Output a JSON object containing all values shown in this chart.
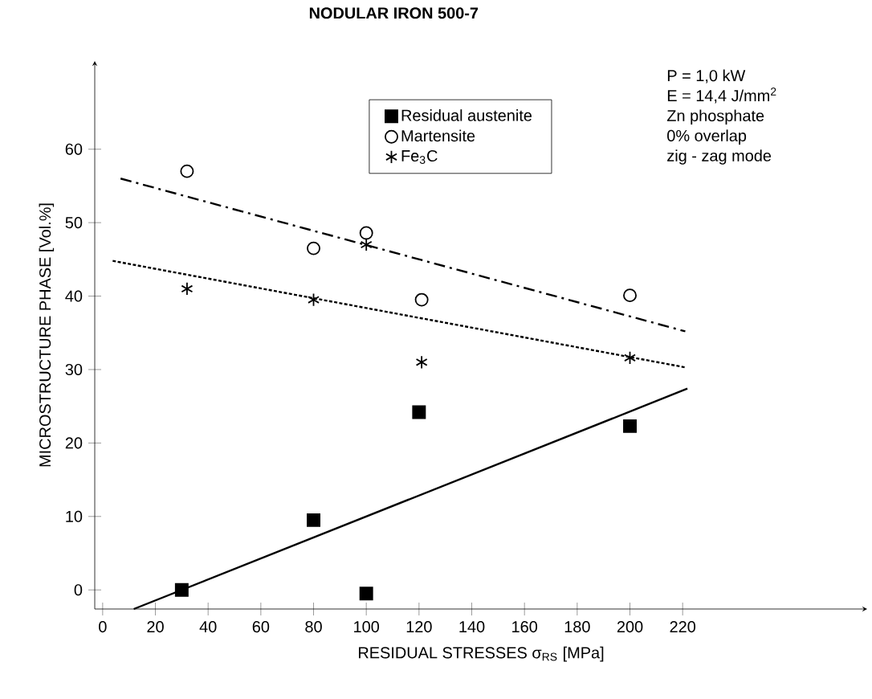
{
  "chart_data": {
    "type": "scatter",
    "title": "NODULAR IRON 500-7",
    "xlabel": "RESIDUAL STRESSES σ$_{RS}$ [MPa]",
    "ylabel": "MICROSTRUCTURE PHASE [Vol.%]",
    "annotations": [
      "P = 1,0 kW",
      "E = 14,4 J/mm$^{2}$",
      "Zn phosphate",
      "0% overlap",
      "zig - zag mode"
    ],
    "xlim": [
      -3,
      290
    ],
    "ylim": [
      -2.6,
      72
    ],
    "xticks": [
      0,
      20,
      40,
      60,
      80,
      100,
      120,
      140,
      160,
      180,
      200,
      220
    ],
    "yticks": [
      0,
      10,
      20,
      30,
      40,
      50,
      60
    ],
    "grid": false,
    "legend": "top",
    "series": [
      {
        "name": "Residual austenite",
        "color": "#000000",
        "marker": "square",
        "x": [
          30,
          80,
          100,
          120,
          200
        ],
        "values": [
          0,
          9.5,
          -0.5,
          24.2,
          22.3
        ]
      },
      {
        "name": "Martensite",
        "color": "#000000",
        "marker": "circle",
        "x": [
          32,
          80,
          100,
          121,
          200
        ],
        "values": [
          57,
          46.5,
          48.6,
          39.5,
          40.1
        ]
      },
      {
        "name": "Fe$_{3}$C",
        "color": "#000000",
        "marker": "cross",
        "x": [
          32,
          80,
          100,
          121,
          200
        ],
        "values": [
          41,
          39.5,
          47,
          31,
          31.6
        ]
      },
      {
        "type": "line",
        "color": "#000000",
        "marker": "none",
        "line_style": "solid",
        "x": [
          11.8,
          221.8
        ],
        "values": [
          -2.6,
          27.4
        ]
      },
      {
        "type": "line",
        "color": "#000000",
        "marker": "none",
        "line_style": "dashdot",
        "x": [
          6.8,
          221
        ],
        "values": [
          56,
          35.2
        ]
      },
      {
        "type": "line",
        "color": "#000000",
        "marker": "none",
        "line_style": "dotted",
        "x": [
          3.8,
          221
        ],
        "values": [
          44.8,
          30.3
        ]
      }
    ]
  }
}
